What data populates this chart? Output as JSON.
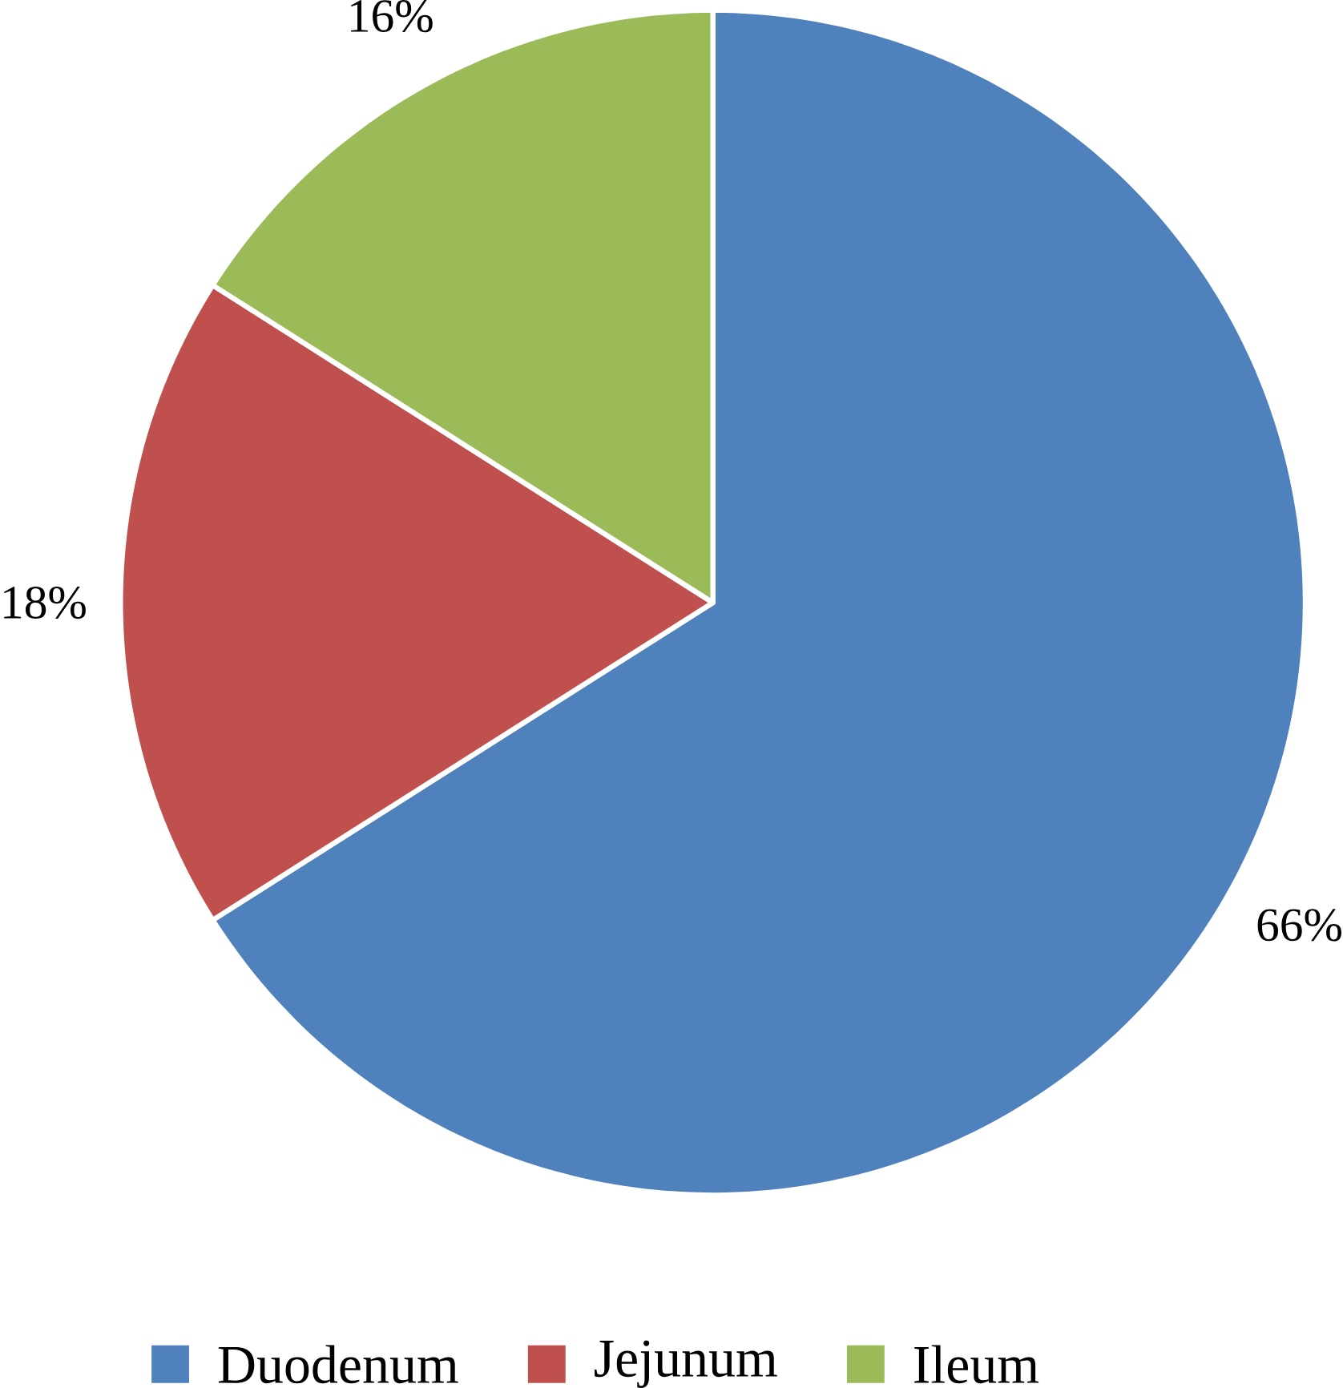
{
  "chart_data": {
    "type": "pie",
    "categories": [
      "Duodenum",
      "Jejunum",
      "Ileum"
    ],
    "values": [
      66,
      18,
      16
    ],
    "value_labels": [
      "66%",
      "18%",
      "16%"
    ],
    "colors": [
      "#4f81bd",
      "#c0504d",
      "#9bbb59"
    ],
    "legend": "bottom"
  }
}
